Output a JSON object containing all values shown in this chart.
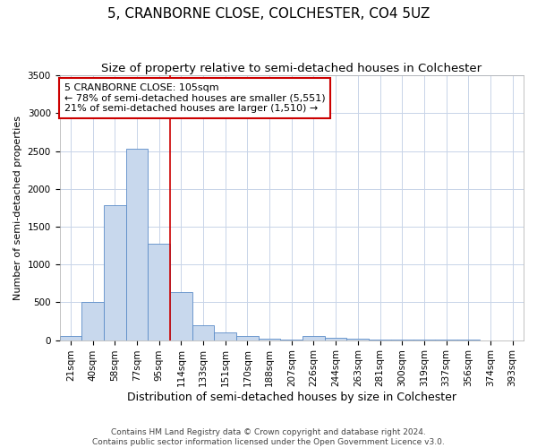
{
  "title": "5, CRANBORNE CLOSE, COLCHESTER, CO4 5UZ",
  "subtitle": "Size of property relative to semi-detached houses in Colchester",
  "xlabel": "Distribution of semi-detached houses by size in Colchester",
  "ylabel": "Number of semi-detached properties",
  "categories": [
    "21sqm",
    "40sqm",
    "58sqm",
    "77sqm",
    "95sqm",
    "114sqm",
    "133sqm",
    "151sqm",
    "170sqm",
    "188sqm",
    "207sqm",
    "226sqm",
    "244sqm",
    "263sqm",
    "281sqm",
    "300sqm",
    "319sqm",
    "337sqm",
    "356sqm",
    "374sqm",
    "393sqm"
  ],
  "values": [
    55,
    500,
    1780,
    2530,
    1280,
    630,
    200,
    100,
    55,
    20,
    10,
    55,
    30,
    20,
    5,
    4,
    3,
    2,
    2,
    1,
    1
  ],
  "bar_color": "#c8d8ed",
  "bar_edge_color": "#5b8cc8",
  "vline_color": "#cc0000",
  "annotation_text": "5 CRANBORNE CLOSE: 105sqm\n← 78% of semi-detached houses are smaller (5,551)\n21% of semi-detached houses are larger (1,510) →",
  "annotation_box_color": "#cc0000",
  "ylim": [
    0,
    3500
  ],
  "yticks": [
    0,
    500,
    1000,
    1500,
    2000,
    2500,
    3000,
    3500
  ],
  "grid_color": "#c8d4e8",
  "bg_color": "#ffffff",
  "footnote": "Contains HM Land Registry data © Crown copyright and database right 2024.\nContains public sector information licensed under the Open Government Licence v3.0.",
  "title_fontsize": 11,
  "subtitle_fontsize": 9.5,
  "xlabel_fontsize": 9,
  "ylabel_fontsize": 8,
  "tick_fontsize": 7.5,
  "annotation_fontsize": 8,
  "footnote_fontsize": 6.5
}
